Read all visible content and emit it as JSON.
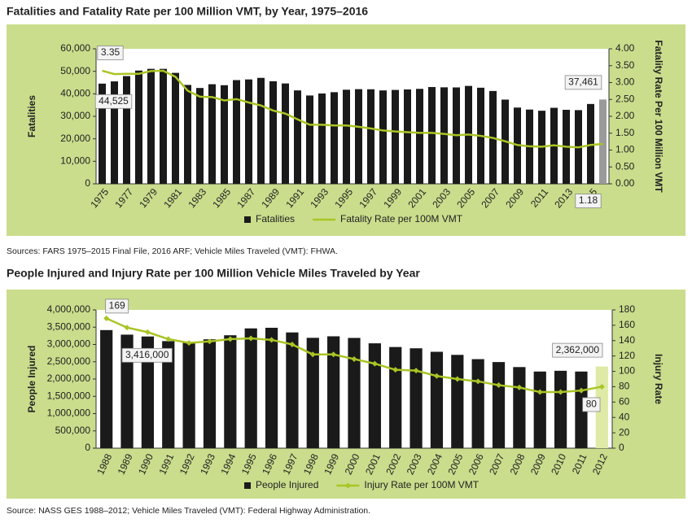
{
  "chart_data": [
    {
      "type": "combo",
      "title": "Fatalities and Fatality Rate per 100 Million VMT, by Year, 1975–2016",
      "source": "Sources: FARS 1975–2015 Final File, 2016 ARF; Vehicle Miles Traveled (VMT): FHWA.",
      "ylabel": "Fatalities",
      "y2label": "Fatality Rate Per 100 Million VMT",
      "categories": [
        "1975",
        null,
        "1977",
        null,
        "1979",
        null,
        "1981",
        null,
        "1983",
        null,
        "1985",
        null,
        "1987",
        null,
        "1989",
        null,
        "1991",
        null,
        "1993",
        null,
        "1995",
        null,
        "1997",
        null,
        "1999",
        null,
        "2001",
        null,
        "2003",
        null,
        "2005",
        null,
        "2007",
        null,
        "2009",
        null,
        "2011",
        null,
        "2013",
        null,
        "2015",
        null
      ],
      "series": [
        {
          "name": "Fatalities",
          "type": "bar",
          "color": "#1a1a1a",
          "values": [
            44525,
            45523,
            47878,
            50331,
            51093,
            51091,
            49301,
            43945,
            42589,
            44257,
            43825,
            46087,
            46390,
            47087,
            45582,
            44599,
            41508,
            39250,
            40150,
            40716,
            41817,
            42065,
            42013,
            41501,
            41717,
            41945,
            42196,
            43005,
            42884,
            42836,
            43510,
            42708,
            41259,
            37423,
            33883,
            32999,
            32479,
            33782,
            32894,
            32744,
            35484,
            37461
          ],
          "value_labels": [
            "44,525",
            null,
            null,
            null,
            null,
            null,
            null,
            null,
            null,
            null,
            null,
            null,
            null,
            null,
            null,
            null,
            null,
            null,
            null,
            null,
            null,
            null,
            null,
            null,
            null,
            null,
            null,
            null,
            null,
            null,
            null,
            null,
            null,
            null,
            null,
            null,
            null,
            null,
            null,
            null,
            null,
            "37,461"
          ]
        },
        {
          "name": "Fatality Rate per 100M VMT",
          "type": "line",
          "axis": "y2",
          "color": "#a9c525",
          "values": [
            3.35,
            3.25,
            3.26,
            3.26,
            3.34,
            3.35,
            3.17,
            2.76,
            2.58,
            2.57,
            2.47,
            2.51,
            2.41,
            2.32,
            2.17,
            2.08,
            1.91,
            1.75,
            1.75,
            1.73,
            1.73,
            1.69,
            1.64,
            1.58,
            1.55,
            1.53,
            1.51,
            1.51,
            1.48,
            1.44,
            1.46,
            1.42,
            1.36,
            1.26,
            1.15,
            1.11,
            1.1,
            1.14,
            1.1,
            1.08,
            1.15,
            1.18
          ]
        }
      ],
      "ylim": [
        0,
        60000
      ],
      "yticks": [
        0,
        {
          "value": 10000,
          "label": "10,000"
        },
        {
          "value": 20000,
          "label": "20,000"
        },
        {
          "value": 30000,
          "label": "30,000"
        },
        {
          "value": 40000,
          "label": "40,000"
        },
        {
          "value": 50000,
          "label": "50,000"
        },
        {
          "value": 60000,
          "label": "60,000"
        }
      ],
      "y2lim": [
        0,
        4
      ],
      "y2ticks": [
        {
          "value": 0,
          "label": "0.00"
        },
        {
          "value": 0.5,
          "label": "0.50"
        },
        {
          "value": 1,
          "label": "1.00"
        },
        {
          "value": 1.5,
          "label": "1.50"
        },
        {
          "value": 2,
          "label": "2.00"
        },
        {
          "value": 2.5,
          "label": "2.50"
        },
        {
          "value": 3,
          "label": "3.00"
        },
        {
          "value": 3.5,
          "label": "3.50"
        },
        {
          "value": 4,
          "label": "4.00"
        }
      ],
      "highlight_color": "#9a9a9a",
      "markers": false,
      "grid": false,
      "legend": "bottom"
    },
    {
      "type": "combo",
      "title": "People Injured and Injury Rate per 100 Million Vehicle Miles Traveled by Year",
      "source": "Source: NASS GES 1988–2012; Vehicle Miles Traveled (VMT): Federal Highway Administration.",
      "ylabel": "People Injured",
      "y2label": "Injury Rate",
      "categories": [
        "1988",
        "1989",
        "1990",
        "1991",
        "1992",
        "1993",
        "1994",
        "1995",
        "1996",
        "1997",
        "1998",
        "1999",
        "2000",
        "2001",
        "2002",
        "2003",
        "2004",
        "2005",
        "2006",
        "2007",
        "2008",
        "2009",
        "2010",
        "2011",
        "2012"
      ],
      "series": [
        {
          "name": "People Injured",
          "type": "bar",
          "color": "#1a1a1a",
          "values": [
            3416000,
            3284000,
            3231000,
            3097000,
            3070000,
            3149000,
            3266000,
            3465000,
            3483000,
            3348000,
            3192000,
            3236000,
            3189000,
            3033000,
            2926000,
            2889000,
            2788000,
            2699000,
            2575000,
            2491000,
            2346000,
            2217000,
            2239000,
            2217000,
            2362000
          ],
          "value_labels": [
            "3,416,000",
            null,
            null,
            null,
            null,
            null,
            null,
            null,
            null,
            null,
            null,
            null,
            null,
            null,
            null,
            null,
            null,
            null,
            null,
            null,
            null,
            null,
            null,
            null,
            "2,362,000"
          ]
        },
        {
          "name": "Injury Rate per 100M VMT",
          "type": "line",
          "axis": "y2",
          "color": "#a9c525",
          "values": [
            169,
            157,
            151,
            142,
            137,
            139,
            142,
            143,
            141,
            135,
            122,
            122,
            116,
            110,
            102,
            101,
            94,
            90,
            87,
            82,
            79,
            73,
            73,
            75,
            80
          ]
        }
      ],
      "ylim": [
        0,
        4000000
      ],
      "yticks": [
        0,
        {
          "value": 500000,
          "label": "500,000"
        },
        {
          "value": 1000000,
          "label": "1,000,000"
        },
        {
          "value": 1500000,
          "label": "1,500,000"
        },
        {
          "value": 2000000,
          "label": "2,000,000"
        },
        {
          "value": 2500000,
          "label": "2,500,000"
        },
        {
          "value": 3000000,
          "label": "3,000,000"
        },
        {
          "value": 3500000,
          "label": "3,500,000"
        },
        {
          "value": 4000000,
          "label": "4,000,000"
        }
      ],
      "y2lim": [
        0,
        180
      ],
      "y2ticks": [
        0,
        20,
        40,
        60,
        80,
        100,
        120,
        140,
        160,
        180
      ],
      "highlight_color": "#dfeaa6",
      "markers": true,
      "grid": false,
      "legend": "bottom"
    }
  ]
}
